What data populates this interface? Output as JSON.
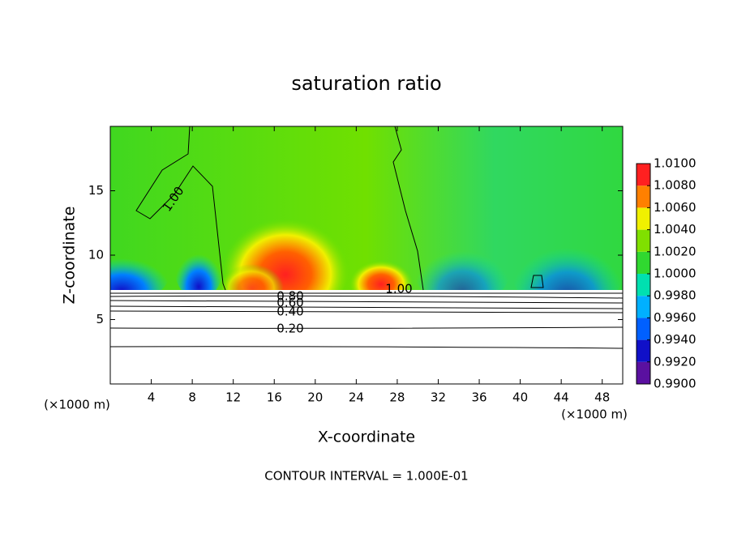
{
  "chart_data": {
    "type": "contour",
    "title": "saturation ratio",
    "x_label": "X-coordinate",
    "y_label": "Z-coordinate",
    "x_unit": "(×1000 m)",
    "annotation": "CONTOUR INTERVAL = 1.000E-01",
    "xlim": [
      0,
      50
    ],
    "xticks": [
      4,
      8,
      12,
      16,
      20,
      24,
      28,
      32,
      36,
      40,
      44,
      48
    ],
    "ylim": [
      0,
      20
    ],
    "yticks": [
      5,
      10,
      15
    ],
    "contour_labels": [
      "1.00",
      "1.00",
      "0.80",
      "0.60",
      "0.40",
      "0.20"
    ],
    "colorbar": {
      "lim": [
        0.99,
        1.01
      ],
      "ticks": [
        {
          "value": 0.99,
          "label": "0.9900"
        },
        {
          "value": 0.992,
          "label": "0.9920"
        },
        {
          "value": 0.994,
          "label": "0.9940"
        },
        {
          "value": 0.996,
          "label": "0.9960"
        },
        {
          "value": 0.998,
          "label": "0.9980"
        },
        {
          "value": 1.0,
          "label": "1.0000"
        },
        {
          "value": 1.002,
          "label": "1.0020"
        },
        {
          "value": 1.004,
          "label": "1.0040"
        },
        {
          "value": 1.006,
          "label": "1.0060"
        },
        {
          "value": 1.008,
          "label": "1.0080"
        },
        {
          "value": 1.01,
          "label": "1.0100"
        }
      ],
      "colors": [
        "#5a10a0",
        "#1010c8",
        "#0060ff",
        "#00b0ff",
        "#00e0b0",
        "#30d830",
        "#80e000",
        "#f0f000",
        "#ff8000",
        "#ff2020"
      ]
    }
  }
}
